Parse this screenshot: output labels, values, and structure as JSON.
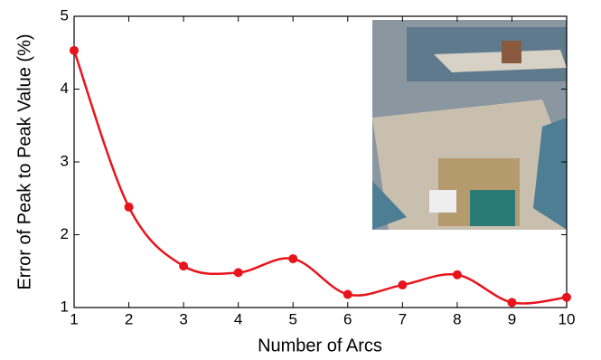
{
  "chart_data": {
    "type": "line",
    "smooth": true,
    "x_label": "Number of Arcs",
    "y_label": "Error of Peak to Peak Value (%)",
    "x": [
      1,
      2,
      3,
      4,
      5,
      6,
      7,
      8,
      9,
      10
    ],
    "series": [
      {
        "color": "#e8141c",
        "values": [
          4.53,
          2.38,
          1.57,
          1.48,
          1.67,
          1.18,
          1.31,
          1.45,
          1.07,
          1.14
        ]
      }
    ],
    "xlim": [
      1,
      10
    ],
    "xticks": [
      1,
      2,
      3,
      4,
      5,
      6,
      7,
      8,
      9,
      10
    ],
    "ylim": [
      1,
      5
    ],
    "yticks": [
      1,
      2,
      3,
      4,
      5
    ],
    "grid": false
  }
}
